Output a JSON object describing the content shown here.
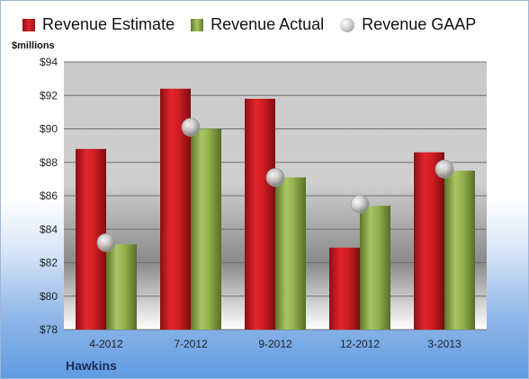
{
  "company": "Hawkins",
  "chart_data": {
    "type": "bar",
    "ylabel": "$millions",
    "ylim": [
      78,
      94
    ],
    "y_ticks": [
      "$78",
      "$80",
      "$82",
      "$84",
      "$86",
      "$88",
      "$90",
      "$92",
      "$94"
    ],
    "grid": true,
    "legend_position": "top",
    "categories": [
      "4-2012",
      "7-2012",
      "9-2012",
      "12-2012",
      "3-2013"
    ],
    "series": [
      {
        "name": "Revenue Estimate",
        "type": "bar",
        "color": "#d61f26",
        "values": [
          88.8,
          92.4,
          91.8,
          82.9,
          88.6
        ]
      },
      {
        "name": "Revenue Actual",
        "type": "bar",
        "color": "#8fad4a",
        "values": [
          83.1,
          90.0,
          87.1,
          85.4,
          87.5
        ]
      },
      {
        "name": "Revenue GAAP",
        "type": "marker",
        "color": "#b8b8b8",
        "values": [
          83.2,
          90.1,
          87.1,
          85.5,
          87.6
        ]
      }
    ]
  }
}
